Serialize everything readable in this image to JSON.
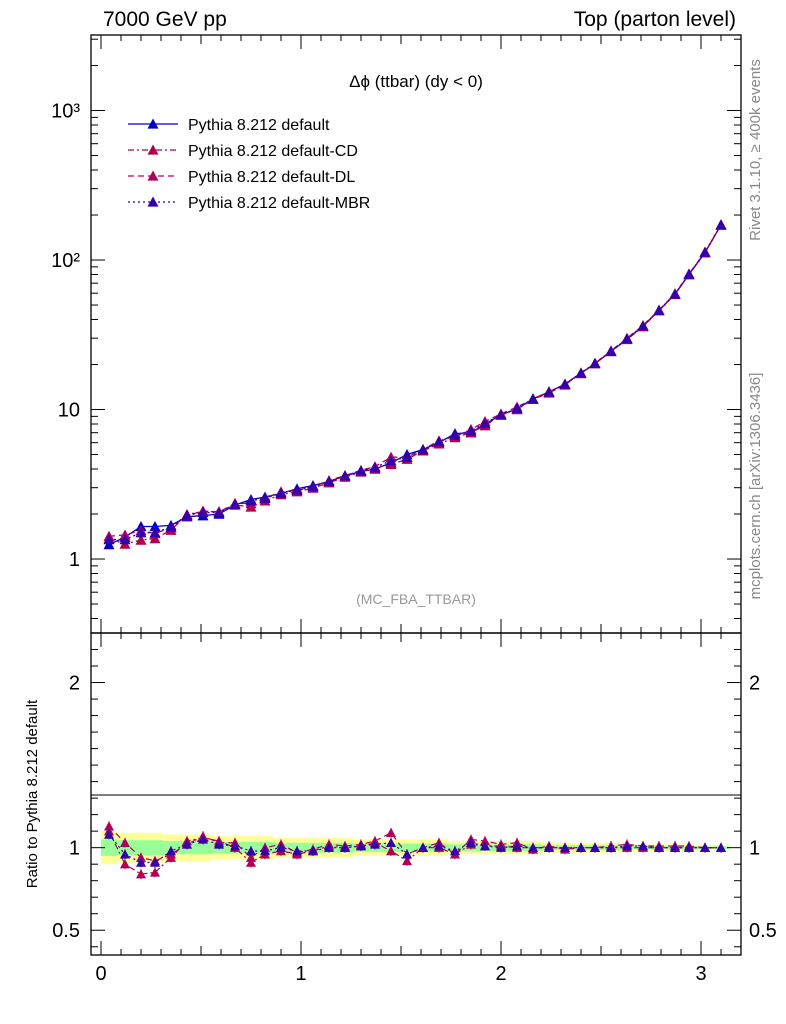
{
  "header": {
    "left": "7000 GeV pp",
    "right": "Top (parton level)"
  },
  "side_labels": {
    "rivet": "Rivet 3.1.10, ≥ 400k events",
    "mcplots": "mcplots.cern.ch [arXiv:1306.3436]"
  },
  "colors": {
    "default": "#0000cc",
    "cd": "#b0004f",
    "dl": "#b0005f",
    "mbr": "#3300aa",
    "band_outer": "#ffff99",
    "band_inner": "#99ff99"
  },
  "chart_data": [
    {
      "type": "line",
      "title": "Δϕ (ttbar) (dy < 0)",
      "watermark": "(MC_FBA_TTBAR)",
      "yscale": "log",
      "xlim": [
        -0.05,
        3.2
      ],
      "ylim": [
        0.32,
        3200
      ],
      "y_tick_labels": [
        "1",
        "10",
        "10²",
        "10³"
      ],
      "x": [
        0.04,
        0.12,
        0.2,
        0.27,
        0.35,
        0.43,
        0.51,
        0.59,
        0.67,
        0.75,
        0.82,
        0.9,
        0.98,
        1.06,
        1.14,
        1.22,
        1.3,
        1.37,
        1.45,
        1.53,
        1.61,
        1.69,
        1.77,
        1.85,
        1.92,
        2.0,
        2.08,
        2.16,
        2.24,
        2.32,
        2.4,
        2.47,
        2.55,
        2.63,
        2.71,
        2.79,
        2.87,
        2.94,
        3.02,
        3.1
      ],
      "legend": {
        "placement": "top-left"
      },
      "series": [
        {
          "name": "Pythia 8.212 default",
          "color": "#0000cc",
          "style": "solid",
          "values": [
            1.25,
            1.4,
            1.65,
            1.65,
            1.68,
            1.92,
            1.95,
            2.0,
            2.3,
            2.5,
            2.6,
            2.75,
            2.95,
            3.1,
            3.3,
            3.6,
            3.85,
            4.0,
            4.4,
            5.0,
            5.4,
            6.0,
            6.9,
            7.0,
            8.0,
            9.2,
            10.1,
            11.8,
            13.1,
            14.8,
            17.5,
            20.3,
            24.5,
            29.5,
            36.0,
            46.0,
            59.0,
            80.0,
            112,
            172
          ]
        },
        {
          "name": "Pythia 8.212 default-CD",
          "color": "#b0004f",
          "style": "dashdot",
          "values": [
            1.37,
            1.26,
            1.34,
            1.37,
            1.56,
            1.99,
            2.07,
            2.08,
            2.3,
            2.23,
            2.45,
            2.7,
            2.82,
            2.98,
            3.24,
            3.53,
            3.82,
            4.06,
            4.3,
            4.65,
            5.29,
            5.9,
            6.49,
            7.02,
            7.8,
            9.2,
            10.0,
            11.7,
            12.9,
            14.7,
            17.4,
            20.3,
            24.4,
            29.4,
            35.8,
            45.8,
            58.8,
            79.8,
            112,
            171
          ]
        },
        {
          "name": "Pythia 8.212 default-DL",
          "color": "#b0005f",
          "style": "dashed",
          "values": [
            1.42,
            1.45,
            1.55,
            1.48,
            1.62,
            1.95,
            2.1,
            2.06,
            2.36,
            2.35,
            2.55,
            2.82,
            2.87,
            3.05,
            3.35,
            3.62,
            3.92,
            4.15,
            4.8,
            4.8,
            5.4,
            6.18,
            6.6,
            7.36,
            8.32,
            9.35,
            10.4,
            11.7,
            13.2,
            14.6,
            17.5,
            20.4,
            24.7,
            30.0,
            36.5,
            46.3,
            59.5,
            80.8,
            113,
            172
          ]
        },
        {
          "name": "Pythia 8.212 default-MBR",
          "color": "#3300aa",
          "style": "dotted",
          "values": [
            1.35,
            1.35,
            1.5,
            1.5,
            1.64,
            1.96,
            2.05,
            2.04,
            2.32,
            2.45,
            2.55,
            2.76,
            2.9,
            3.05,
            3.3,
            3.6,
            3.9,
            4.1,
            4.55,
            4.8,
            5.4,
            6.1,
            6.75,
            7.2,
            8.1,
            9.2,
            10.2,
            11.8,
            13.1,
            14.8,
            17.6,
            20.4,
            24.6,
            29.8,
            36.3,
            46.1,
            59.3,
            80.4,
            113,
            172
          ]
        }
      ]
    },
    {
      "type": "line",
      "ylabel": "Ratio to Pythia 8.212 default",
      "xlim": [
        -0.05,
        3.2
      ],
      "ylim": [
        0.35,
        2.3
      ],
      "y_ticks": [
        0.5,
        1,
        2
      ],
      "y_tick_labels": [
        "0.5",
        "1",
        "2"
      ],
      "x_ticks": [
        0,
        1,
        2,
        3
      ],
      "x_tick_labels": [
        "0",
        "1",
        "2",
        "3"
      ],
      "x": [
        0.04,
        0.12,
        0.2,
        0.27,
        0.35,
        0.43,
        0.51,
        0.59,
        0.67,
        0.75,
        0.82,
        0.9,
        0.98,
        1.06,
        1.14,
        1.22,
        1.3,
        1.37,
        1.45,
        1.53,
        1.61,
        1.69,
        1.77,
        1.85,
        1.92,
        2.0,
        2.08,
        2.16,
        2.24,
        2.32,
        2.4,
        2.47,
        2.55,
        2.63,
        2.71,
        2.79,
        2.87,
        2.94,
        3.02,
        3.1
      ],
      "band_outer": [
        0.1,
        0.09,
        0.09,
        0.09,
        0.08,
        0.08,
        0.08,
        0.07,
        0.07,
        0.07,
        0.07,
        0.06,
        0.06,
        0.06,
        0.06,
        0.06,
        0.05,
        0.05,
        0.05,
        0.05,
        0.05,
        0.05,
        0.04,
        0.04,
        0.04,
        0.04,
        0.04,
        0.04,
        0.03,
        0.03,
        0.03,
        0.03,
        0.03,
        0.02,
        0.02,
        0.02,
        0.02,
        0.02,
        0.015,
        0.015
      ],
      "band_inner": [
        0.05,
        0.045,
        0.045,
        0.045,
        0.04,
        0.04,
        0.04,
        0.035,
        0.035,
        0.035,
        0.035,
        0.03,
        0.03,
        0.03,
        0.03,
        0.03,
        0.025,
        0.025,
        0.025,
        0.025,
        0.025,
        0.025,
        0.02,
        0.02,
        0.02,
        0.02,
        0.02,
        0.02,
        0.015,
        0.015,
        0.015,
        0.015,
        0.015,
        0.01,
        0.01,
        0.01,
        0.01,
        0.01,
        0.008,
        0.008
      ],
      "series": [
        {
          "name": "Pythia 8.212 default-CD",
          "color": "#b0004f",
          "style": "dashdot",
          "values": [
            1.1,
            0.9,
            0.84,
            0.85,
            0.94,
            1.04,
            1.06,
            1.04,
            1.0,
            0.91,
            0.96,
            0.98,
            0.96,
            0.98,
            1.01,
            1.0,
            1.01,
            1.03,
            0.98,
            0.92,
            1.0,
            1.0,
            0.96,
            1.02,
            1.01,
            1.01,
            1.0,
            1.0,
            1.0,
            1.0,
            1.0,
            1.0,
            1.0,
            1.0,
            1.0,
            1.0,
            1.0,
            1.0,
            1.0,
            1.0
          ]
        },
        {
          "name": "Pythia 8.212 default-DL",
          "color": "#b0005f",
          "style": "dashed",
          "values": [
            1.13,
            1.03,
            0.94,
            0.92,
            0.96,
            1.02,
            1.07,
            1.03,
            1.03,
            0.94,
            1.0,
            1.02,
            0.97,
            0.99,
            1.02,
            1.01,
            1.02,
            1.04,
            1.09,
            0.96,
            1.0,
            1.03,
            0.96,
            1.05,
            1.04,
            1.02,
            1.03,
            0.99,
            1.01,
            0.99,
            1.0,
            1.0,
            1.01,
            1.02,
            1.01,
            1.01,
            1.01,
            1.01,
            1.0,
            1.0
          ]
        },
        {
          "name": "Pythia 8.212 default-MBR",
          "color": "#3300aa",
          "style": "dotted",
          "values": [
            1.08,
            0.96,
            0.91,
            0.91,
            0.98,
            1.02,
            1.05,
            1.02,
            1.01,
            0.98,
            0.98,
            1.0,
            0.98,
            0.98,
            1.0,
            1.0,
            1.01,
            1.02,
            1.03,
            0.96,
            1.0,
            1.01,
            0.98,
            1.03,
            1.01,
            1.0,
            1.01,
            1.0,
            1.0,
            1.0,
            1.0,
            1.0,
            1.0,
            1.01,
            1.01,
            1.0,
            1.0,
            1.0,
            1.0,
            1.0
          ]
        }
      ]
    }
  ]
}
